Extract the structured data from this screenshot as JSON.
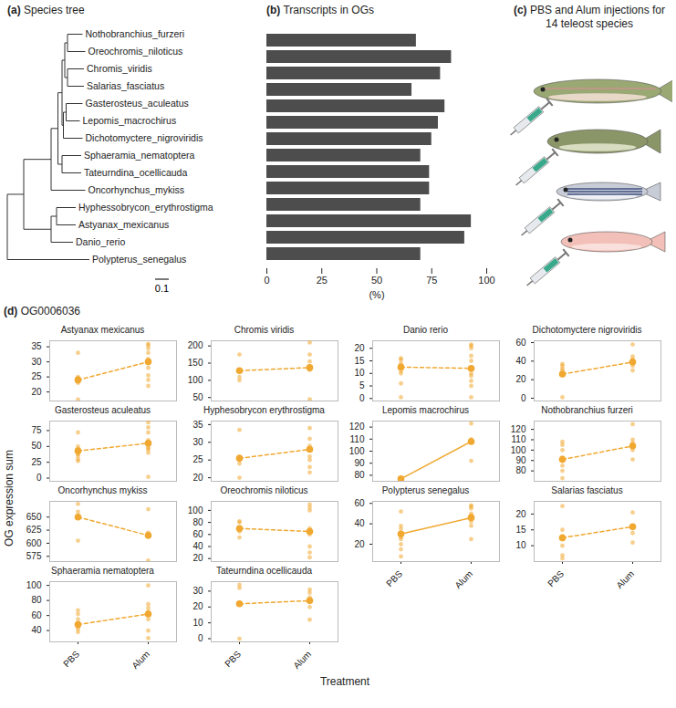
{
  "chart_data": [
    {
      "type": "tree",
      "panel": "(a)",
      "title": "Species tree",
      "scale_bar": 0.1,
      "tree": {
        "children": [
          {
            "length": 0.12,
            "children": [
              {
                "length": 0.2,
                "children": [
                  {
                    "length": 0.05,
                    "children": [
                      {
                        "length": 0.03,
                        "children": [
                          {
                            "length": 0.02,
                            "children": [
                              {
                                "length": 0.02,
                                "children": [
                                  {
                                    "name": "Nothobranchius_furzeri",
                                    "length": 0.11
                                  },
                                  {
                                    "name": "Oreochromis_niloticus",
                                    "length": 0.13
                                  }
                                ]
                              },
                              {
                                "length": 0.02,
                                "children": [
                                  {
                                    "name": "Chromis_viridis",
                                    "length": 0.12
                                  },
                                  {
                                    "name": "Salarias_fasciatus",
                                    "length": 0.12
                                  }
                                ]
                              }
                            ]
                          },
                          {
                            "length": 0.01,
                            "children": [
                              {
                                "length": 0.02,
                                "children": [
                                  {
                                    "name": "Gasterosteus_aculeatus",
                                    "length": 0.12
                                  },
                                  {
                                    "name": "Lepomis_macrochirus",
                                    "length": 0.1
                                  }
                                ]
                              },
                              {
                                "name": "Dichotomyctere_nigroviridis",
                                "length": 0.14
                              }
                            ]
                          }
                        ]
                      },
                      {
                        "length": 0.03,
                        "children": [
                          {
                            "name": "Sphaeramia_nematoptera",
                            "length": 0.14
                          },
                          {
                            "name": "Tateurndina_ocellicauda",
                            "length": 0.14
                          }
                        ]
                      }
                    ]
                  },
                  {
                    "name": "Oncorhynchus_mykiss",
                    "length": 0.25
                  }
                ]
              },
              {
                "length": 0.2,
                "children": [
                  {
                    "length": 0.04,
                    "children": [
                      {
                        "name": "Hyphessobrycon_erythrostigma",
                        "length": 0.14
                      },
                      {
                        "name": "Astyanax_mexicanus",
                        "length": 0.14
                      }
                    ]
                  },
                  {
                    "name": "Danio_rerio",
                    "length": 0.16
                  }
                ]
              }
            ]
          },
          {
            "name": "Polypterus_senegalus",
            "length": 0.6
          }
        ]
      }
    },
    {
      "type": "bar",
      "panel": "(b)",
      "title": "Transcripts in OGs",
      "orientation": "horizontal",
      "categories": [
        "Nothobranchius_furzeri",
        "Oreochromis_niloticus",
        "Chromis_viridis",
        "Salarias_fasciatus",
        "Gasterosteus_aculeatus",
        "Lepomis_macrochirus",
        "Dichotomyctere_nigroviridis",
        "Sphaeramia_nematoptera",
        "Tateurndina_ocellicauda",
        "Oncorhynchus_mykiss",
        "Hyphessobrycon_erythrostigma",
        "Astyanax_mexicanus",
        "Danio_rerio",
        "Polypterus_senegalus"
      ],
      "values": [
        68,
        84,
        79,
        66,
        81,
        78,
        75,
        70,
        74,
        74,
        70,
        93,
        90,
        70
      ],
      "color": "#4d4d4d",
      "xlabel": "(%)",
      "xlim": [
        0,
        100
      ],
      "xticks": [
        0,
        25,
        50,
        75,
        100
      ],
      "tick_labels": "x"
    },
    {
      "type": "scatter",
      "panel": "(d)",
      "title": "OG0006036",
      "xlabel": "Treatment",
      "ylabel": "OG expression sum",
      "categories": [
        "PBS",
        "Alum"
      ],
      "color": "#f0a830",
      "panels": [
        {
          "title": "Astyanax mexicanus",
          "ylim": [
            17,
            37
          ],
          "yticks": [
            20,
            25,
            30,
            35
          ],
          "line_style": "dashed",
          "points": {
            "PBS": [
              33,
              25,
              24.5,
              24,
              23.5,
              23,
              17.5
            ],
            "Alum": [
              36,
              35.5,
              34.5,
              33,
              31,
              30,
              28,
              25.5,
              24,
              22
            ]
          },
          "means": [
            24,
            30
          ]
        },
        {
          "title": "Chromis viridis",
          "ylim": [
            40,
            215
          ],
          "yticks": [
            50,
            100,
            150,
            200
          ],
          "line_style": "dashed",
          "points": {
            "PBS": [
              175,
              130,
              110,
              100
            ],
            "Alum": [
              210,
              175,
              155,
              140,
              130,
              45
            ]
          },
          "means": [
            128,
            137
          ]
        },
        {
          "title": "Danio rerio",
          "ylim": [
            -1,
            23
          ],
          "yticks": [
            0,
            5,
            10,
            15,
            20
          ],
          "line_style": "dashed",
          "points": {
            "PBS": [
              16,
              15.5,
              14,
              13,
              12,
              11,
              10,
              6,
              0.5
            ],
            "Alum": [
              21.5,
              21,
              20,
              17,
              15,
              12,
              10,
              9,
              7,
              5,
              0.5
            ]
          },
          "means": [
            12.5,
            12
          ]
        },
        {
          "title": "Dichotomyctere nigroviridis",
          "ylim": [
            -3,
            62
          ],
          "yticks": [
            0,
            20,
            40,
            60
          ],
          "line_style": "dashed",
          "points": {
            "PBS": [
              37,
              35,
              32,
              30,
              27,
              25,
              1
            ],
            "Alum": [
              58,
              45,
              42,
              40,
              38,
              35,
              30
            ]
          },
          "means": [
            26,
            39
          ]
        },
        {
          "title": "Gasterosteus aculeatus",
          "ylim": [
            -5,
            90
          ],
          "yticks": [
            0,
            25,
            50,
            75
          ],
          "line_style": "dashed",
          "points": {
            "PBS": [
              72,
              50,
              45,
              42,
              40,
              38,
              35,
              30,
              27
            ],
            "Alum": [
              88,
              80,
              72,
              60,
              55,
              50,
              47,
              45,
              40,
              2
            ]
          },
          "means": [
            43,
            55
          ]
        },
        {
          "title": "Hyphesobrycon erythrostigma",
          "ylim": [
            19,
            36
          ],
          "yticks": [
            20,
            25,
            30,
            35
          ],
          "line_style": "dashed",
          "points": {
            "PBS": [
              33.5,
              26,
              25.5,
              25,
              24,
              20
            ],
            "Alum": [
              34,
              31,
              29,
              28,
              26,
              25,
              23,
              21.5
            ]
          },
          "means": [
            25.5,
            28
          ]
        },
        {
          "title": "Lepomis macrochirus",
          "ylim": [
            75,
            125
          ],
          "yticks": [
            80,
            90,
            100,
            110,
            120
          ],
          "line_style": "solid",
          "points": {
            "PBS": [
              77
            ],
            "Alum": [
              123,
              110,
              108,
              92
            ]
          },
          "means": [
            77,
            108
          ]
        },
        {
          "title": "Nothobranchius furzeri",
          "ylim": [
            70,
            128
          ],
          "yticks": [
            80,
            90,
            100,
            110,
            120
          ],
          "line_style": "dashed",
          "points": {
            "PBS": [
              108,
              105,
              100,
              93,
              90,
              85,
              80,
              73
            ],
            "Alum": [
              125,
              110,
              107,
              105,
              104,
              100,
              91
            ]
          },
          "means": [
            91,
            104
          ]
        },
        {
          "title": "Oncorhynchus mykiss",
          "ylim": [
            565,
            680
          ],
          "yticks": [
            575,
            600,
            625,
            650
          ],
          "line_style": "dashed",
          "points": {
            "PBS": [
              675,
              660,
              650,
              605
            ],
            "Alum": [
              665,
              620,
              615,
              612,
              567
            ]
          },
          "means": [
            650,
            615
          ]
        },
        {
          "title": "Oreochromis niloticus",
          "ylim": [
            15,
            115
          ],
          "yticks": [
            20,
            40,
            60,
            80,
            100
          ],
          "line_style": "dashed",
          "points": {
            "PBS": [
              82,
              80,
              70,
              65,
              55
            ],
            "Alum": [
              110,
              105,
              100,
              70,
              60,
              40,
              30,
              22
            ]
          },
          "means": [
            70,
            65
          ]
        },
        {
          "title": "Polypterus senegalus",
          "ylim": [
            3,
            62
          ],
          "yticks": [
            20,
            40,
            60
          ],
          "line_style": "solid",
          "points": {
            "PBS": [
              52,
              38,
              35,
              30,
              27,
              25,
              20,
              15,
              8
            ],
            "Alum": [
              58,
              57,
              55,
              50,
              48,
              45,
              42,
              38,
              25
            ]
          },
          "means": [
            30,
            46
          ]
        },
        {
          "title": "Salarias fasciatus",
          "ylim": [
            5,
            24
          ],
          "yticks": [
            10,
            15,
            20
          ],
          "line_style": "dashed",
          "points": {
            "PBS": [
              22.5,
              15,
              13,
              12,
              10,
              7,
              6
            ],
            "Alum": [
              20.5,
              16,
              15.5,
              14,
              11
            ]
          },
          "means": [
            12.5,
            16
          ]
        },
        {
          "title": "Sphaeramia nematoptera",
          "ylim": [
            25,
            105
          ],
          "yticks": [
            40,
            60,
            80,
            100
          ],
          "line_style": "dashed",
          "points": {
            "PBS": [
              67,
              62,
              55,
              50,
              48,
              45,
              42,
              38
            ],
            "Alum": [
              100,
              75,
              70,
              65,
              62,
              55,
              40,
              30
            ]
          },
          "means": [
            48,
            62
          ]
        },
        {
          "title": "Tateurndina ocellicauda",
          "ylim": [
            -2,
            36
          ],
          "yticks": [
            0,
            10,
            20,
            30
          ],
          "line_style": "dashed",
          "points": {
            "PBS": [
              34,
              32,
              22,
              0
            ],
            "Alum": [
              31,
              29,
              26,
              24,
              20,
              12
            ]
          },
          "means": [
            22,
            24
          ]
        }
      ]
    }
  ],
  "illustration": {
    "panel": "(c)",
    "title": "PBS and Alum injections for 14 teleost species"
  }
}
